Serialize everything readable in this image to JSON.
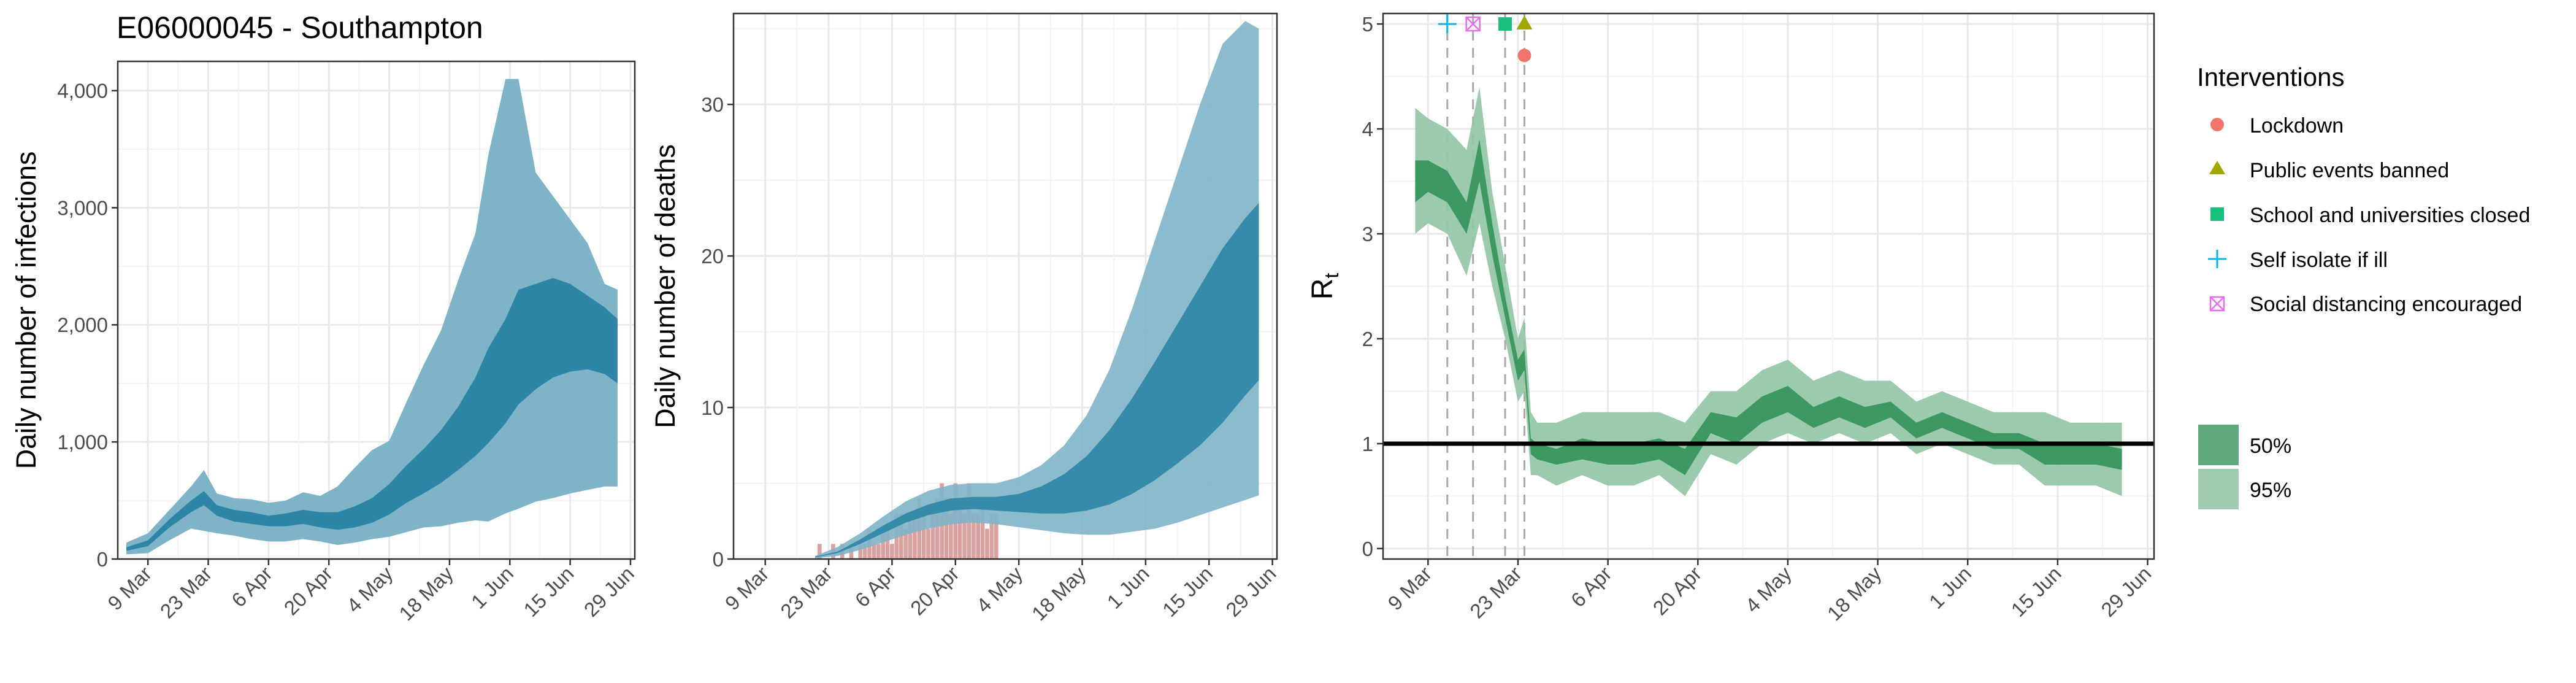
{
  "title": "E06000045 - Southampton",
  "colors": {
    "inf_50": "#2E86A6",
    "inf_95": "#7FB4C8",
    "death_bar": "#D9A29F",
    "rt_50": "#3E9862",
    "rt_95": "#91C4A3",
    "grid": "#E9E9E9",
    "lockdown": "#F0766D",
    "events": "#A3A500",
    "schools": "#19BF7D",
    "self_isolate": "#00B7E8",
    "distancing": "#E76BF3"
  },
  "panels": {
    "infections": {
      "ylabel": "Daily number of infections",
      "yticks": [
        "0",
        "1,000",
        "2,000",
        "3,000",
        "4,000"
      ],
      "xticks": [
        "9 Mar",
        "23 Mar",
        "6 Apr",
        "20 Apr",
        "4 May",
        "18 May",
        "1 Jun",
        "15 Jun",
        "29 Jun"
      ]
    },
    "deaths": {
      "ylabel": "Daily number of deaths",
      "yticks": [
        "0",
        "10",
        "20",
        "30"
      ],
      "xticks": [
        "9 Mar",
        "23 Mar",
        "6 Apr",
        "20 Apr",
        "4 May",
        "18 May",
        "1 Jun",
        "15 Jun",
        "29 Jun"
      ]
    },
    "rt": {
      "ylabel_main": "R",
      "ylabel_sub": "t",
      "yticks": [
        "0",
        "1",
        "2",
        "3",
        "4",
        "5"
      ],
      "xticks": [
        "9 Mar",
        "23 Mar",
        "6 Apr",
        "20 Apr",
        "4 May",
        "18 May",
        "1 Jun",
        "15 Jun",
        "29 Jun"
      ]
    }
  },
  "legend": {
    "title": "Interventions",
    "items": [
      {
        "label": "Lockdown",
        "icon": "circle-icon",
        "color_key": "lockdown"
      },
      {
        "label": "Public events banned",
        "icon": "triangle-icon",
        "color_key": "events"
      },
      {
        "label": "School and universities closed",
        "icon": "square-icon",
        "color_key": "schools"
      },
      {
        "label": "Self isolate if ill",
        "icon": "plus-icon",
        "color_key": "self_isolate"
      },
      {
        "label": "Social distancing encouraged",
        "icon": "boxed-x-icon",
        "color_key": "distancing"
      }
    ],
    "bands": [
      {
        "label": "50%",
        "color_key": "rt_50"
      },
      {
        "label": "95%",
        "color_key": "rt_95"
      }
    ]
  },
  "chart_data": [
    {
      "type": "area",
      "title": "E06000045 - Southampton",
      "xlabel": "",
      "ylabel": "Daily number of infections",
      "xlim": [
        "2020-03-02",
        "2020-06-30"
      ],
      "ylim": [
        0,
        4250
      ],
      "grid": true,
      "series": [
        {
          "name": "95%",
          "x": [
            "2020-03-04",
            "2020-03-09",
            "2020-03-14",
            "2020-03-19",
            "2020-03-22",
            "2020-03-25",
            "2020-03-29",
            "2020-04-02",
            "2020-04-06",
            "2020-04-10",
            "2020-04-14",
            "2020-04-18",
            "2020-04-22",
            "2020-04-26",
            "2020-04-30",
            "2020-05-04",
            "2020-05-08",
            "2020-05-12",
            "2020-05-16",
            "2020-05-20",
            "2020-05-24",
            "2020-05-27",
            "2020-05-31",
            "2020-06-03",
            "2020-06-07",
            "2020-06-11",
            "2020-06-15",
            "2020-06-19",
            "2020-06-23",
            "2020-06-26"
          ],
          "lower": [
            40,
            50,
            160,
            260,
            240,
            220,
            200,
            170,
            150,
            150,
            170,
            150,
            120,
            140,
            170,
            190,
            230,
            270,
            280,
            310,
            330,
            320,
            390,
            430,
            490,
            520,
            560,
            590,
            620,
            620
          ],
          "upper": [
            140,
            220,
            420,
            620,
            760,
            560,
            520,
            510,
            480,
            500,
            570,
            540,
            620,
            780,
            930,
            1010,
            1340,
            1660,
            1950,
            2380,
            2780,
            3450,
            4100,
            4100,
            3300,
            3100,
            2900,
            2700,
            2350,
            2300
          ]
        },
        {
          "name": "50%",
          "x": [
            "2020-03-04",
            "2020-03-09",
            "2020-03-14",
            "2020-03-19",
            "2020-03-22",
            "2020-03-25",
            "2020-03-29",
            "2020-04-02",
            "2020-04-06",
            "2020-04-10",
            "2020-04-14",
            "2020-04-18",
            "2020-04-22",
            "2020-04-26",
            "2020-04-30",
            "2020-05-04",
            "2020-05-08",
            "2020-05-12",
            "2020-05-16",
            "2020-05-20",
            "2020-05-24",
            "2020-05-27",
            "2020-05-31",
            "2020-06-03",
            "2020-06-07",
            "2020-06-11",
            "2020-06-15",
            "2020-06-19",
            "2020-06-23",
            "2020-06-26"
          ],
          "lower": [
            70,
            110,
            270,
            400,
            460,
            370,
            320,
            300,
            280,
            280,
            300,
            270,
            250,
            270,
            310,
            380,
            480,
            560,
            650,
            760,
            880,
            990,
            1160,
            1320,
            1450,
            1550,
            1600,
            1620,
            1580,
            1500
          ],
          "upper": [
            100,
            160,
            340,
            500,
            580,
            460,
            420,
            400,
            370,
            390,
            420,
            400,
            400,
            450,
            520,
            640,
            800,
            940,
            1100,
            1300,
            1550,
            1800,
            2050,
            2300,
            2350,
            2400,
            2350,
            2250,
            2150,
            2050
          ]
        }
      ]
    },
    {
      "type": "bar",
      "xlabel": "",
      "ylabel": "Daily number of deaths",
      "xlim": [
        "2020-03-02",
        "2020-06-30"
      ],
      "ylim": [
        0,
        36
      ],
      "grid": true,
      "bars": {
        "x": [
          "2020-03-21",
          "2020-03-22",
          "2020-03-23",
          "2020-03-24",
          "2020-03-25",
          "2020-03-26",
          "2020-03-27",
          "2020-03-28",
          "2020-03-29",
          "2020-03-30",
          "2020-03-31",
          "2020-04-01",
          "2020-04-02",
          "2020-04-03",
          "2020-04-04",
          "2020-04-05",
          "2020-04-06",
          "2020-04-07",
          "2020-04-08",
          "2020-04-09",
          "2020-04-10",
          "2020-04-11",
          "2020-04-12",
          "2020-04-13",
          "2020-04-14",
          "2020-04-15",
          "2020-04-16",
          "2020-04-17",
          "2020-04-18",
          "2020-04-19",
          "2020-04-20",
          "2020-04-21",
          "2020-04-22",
          "2020-04-23",
          "2020-04-24",
          "2020-04-25",
          "2020-04-26",
          "2020-04-27",
          "2020-04-28",
          "2020-04-29"
        ],
        "values": [
          1,
          0,
          0,
          1,
          0,
          1,
          0,
          1,
          0,
          1,
          1,
          2,
          1,
          1,
          2,
          2,
          1,
          3,
          3,
          2,
          3,
          3,
          4,
          3,
          2,
          3,
          4,
          5,
          4,
          3,
          5,
          4,
          3,
          5,
          3,
          3,
          4,
          2,
          3,
          3
        ]
      },
      "series": [
        {
          "name": "95%",
          "x": [
            "2020-03-20",
            "2020-03-25",
            "2020-03-30",
            "2020-04-04",
            "2020-04-09",
            "2020-04-14",
            "2020-04-19",
            "2020-04-24",
            "2020-04-29",
            "2020-05-04",
            "2020-05-09",
            "2020-05-14",
            "2020-05-19",
            "2020-05-24",
            "2020-05-29",
            "2020-06-03",
            "2020-06-08",
            "2020-06-13",
            "2020-06-18",
            "2020-06-23",
            "2020-06-26"
          ],
          "lower": [
            0.05,
            0.2,
            0.6,
            1.1,
            1.6,
            2.0,
            2.3,
            2.4,
            2.3,
            2.1,
            1.9,
            1.7,
            1.6,
            1.6,
            1.8,
            2.0,
            2.4,
            2.9,
            3.4,
            3.9,
            4.2
          ],
          "upper": [
            0.2,
            0.8,
            1.7,
            2.8,
            3.8,
            4.5,
            4.9,
            5.0,
            5.0,
            5.4,
            6.2,
            7.5,
            9.5,
            12.5,
            16.5,
            21.0,
            25.5,
            30.0,
            34.0,
            35.5,
            35.0
          ]
        },
        {
          "name": "50%",
          "x": [
            "2020-03-20",
            "2020-03-25",
            "2020-03-30",
            "2020-04-04",
            "2020-04-09",
            "2020-04-14",
            "2020-04-19",
            "2020-04-24",
            "2020-04-29",
            "2020-05-04",
            "2020-05-09",
            "2020-05-14",
            "2020-05-19",
            "2020-05-24",
            "2020-05-29",
            "2020-06-03",
            "2020-06-08",
            "2020-06-13",
            "2020-06-18",
            "2020-06-23",
            "2020-06-26"
          ],
          "lower": [
            0.1,
            0.4,
            1.0,
            1.7,
            2.4,
            2.9,
            3.2,
            3.3,
            3.2,
            3.1,
            3.0,
            3.0,
            3.2,
            3.6,
            4.3,
            5.2,
            6.3,
            7.5,
            9.0,
            10.8,
            11.8
          ],
          "upper": [
            0.15,
            0.5,
            1.3,
            2.2,
            3.0,
            3.6,
            4.0,
            4.1,
            4.1,
            4.3,
            4.8,
            5.6,
            6.8,
            8.5,
            10.6,
            13.0,
            15.5,
            18.0,
            20.5,
            22.5,
            23.5
          ]
        }
      ]
    },
    {
      "type": "area",
      "xlabel": "",
      "ylabel": "Rt",
      "xlim": [
        "2020-03-02",
        "2020-06-30"
      ],
      "ylim": [
        -0.1,
        5.1
      ],
      "grid": true,
      "reference_line": 1,
      "series": [
        {
          "name": "95%",
          "x": [
            "2020-03-07",
            "2020-03-09",
            "2020-03-12",
            "2020-03-15",
            "2020-03-17",
            "2020-03-19",
            "2020-03-21",
            "2020-03-23",
            "2020-03-24",
            "2020-03-25",
            "2020-03-26",
            "2020-03-29",
            "2020-04-02",
            "2020-04-06",
            "2020-04-10",
            "2020-04-14",
            "2020-04-18",
            "2020-04-22",
            "2020-04-26",
            "2020-04-30",
            "2020-05-04",
            "2020-05-08",
            "2020-05-12",
            "2020-05-16",
            "2020-05-20",
            "2020-05-24",
            "2020-05-28",
            "2020-06-01",
            "2020-06-05",
            "2020-06-09",
            "2020-06-13",
            "2020-06-17",
            "2020-06-21",
            "2020-06-25"
          ],
          "lower": [
            3.0,
            3.1,
            3.0,
            2.6,
            3.1,
            2.5,
            2.0,
            1.4,
            1.5,
            0.7,
            0.7,
            0.6,
            0.7,
            0.6,
            0.6,
            0.7,
            0.5,
            0.9,
            0.8,
            1.0,
            1.1,
            1.0,
            1.1,
            1.0,
            1.1,
            0.9,
            1.0,
            0.9,
            0.8,
            0.8,
            0.6,
            0.6,
            0.6,
            0.5
          ],
          "upper": [
            4.2,
            4.1,
            4.0,
            3.8,
            4.4,
            3.4,
            2.7,
            2.0,
            2.2,
            1.3,
            1.2,
            1.2,
            1.3,
            1.3,
            1.3,
            1.3,
            1.2,
            1.5,
            1.5,
            1.7,
            1.8,
            1.6,
            1.7,
            1.6,
            1.6,
            1.4,
            1.5,
            1.4,
            1.3,
            1.3,
            1.3,
            1.2,
            1.2,
            1.2
          ]
        },
        {
          "name": "50%",
          "x": [
            "2020-03-07",
            "2020-03-09",
            "2020-03-12",
            "2020-03-15",
            "2020-03-17",
            "2020-03-19",
            "2020-03-21",
            "2020-03-23",
            "2020-03-24",
            "2020-03-25",
            "2020-03-26",
            "2020-03-29",
            "2020-04-02",
            "2020-04-06",
            "2020-04-10",
            "2020-04-14",
            "2020-04-18",
            "2020-04-22",
            "2020-04-26",
            "2020-04-30",
            "2020-05-04",
            "2020-05-08",
            "2020-05-12",
            "2020-05-16",
            "2020-05-20",
            "2020-05-24",
            "2020-05-28",
            "2020-06-01",
            "2020-06-05",
            "2020-06-09",
            "2020-06-13",
            "2020-06-17",
            "2020-06-21",
            "2020-06-25"
          ],
          "lower": [
            3.3,
            3.4,
            3.3,
            3.0,
            3.5,
            2.8,
            2.2,
            1.6,
            1.7,
            0.9,
            0.85,
            0.8,
            0.85,
            0.8,
            0.8,
            0.85,
            0.7,
            1.1,
            1.0,
            1.2,
            1.3,
            1.15,
            1.25,
            1.15,
            1.25,
            1.05,
            1.15,
            1.05,
            0.95,
            0.95,
            0.8,
            0.8,
            0.8,
            0.75
          ],
          "upper": [
            3.7,
            3.7,
            3.6,
            3.3,
            3.9,
            3.1,
            2.4,
            1.8,
            1.9,
            1.05,
            1.0,
            0.95,
            1.05,
            1.0,
            1.0,
            1.05,
            0.95,
            1.3,
            1.25,
            1.45,
            1.55,
            1.35,
            1.45,
            1.35,
            1.4,
            1.2,
            1.3,
            1.2,
            1.1,
            1.1,
            1.0,
            1.0,
            1.0,
            0.95
          ]
        }
      ],
      "interventions": [
        {
          "name": "Self isolate if ill",
          "date": "2020-03-12",
          "y": 5.0,
          "color_key": "self_isolate",
          "shape": "plus"
        },
        {
          "name": "Social distancing encouraged",
          "date": "2020-03-16",
          "y": 5.0,
          "color_key": "distancing",
          "shape": "boxed-x"
        },
        {
          "name": "School and universities closed",
          "date": "2020-03-21",
          "y": 5.0,
          "color_key": "schools",
          "shape": "square"
        },
        {
          "name": "Public events banned",
          "date": "2020-03-24",
          "y": 5.0,
          "color_key": "events",
          "shape": "triangle"
        },
        {
          "name": "Lockdown",
          "date": "2020-03-24",
          "y": 4.7,
          "color_key": "lockdown",
          "shape": "circle"
        }
      ]
    }
  ]
}
